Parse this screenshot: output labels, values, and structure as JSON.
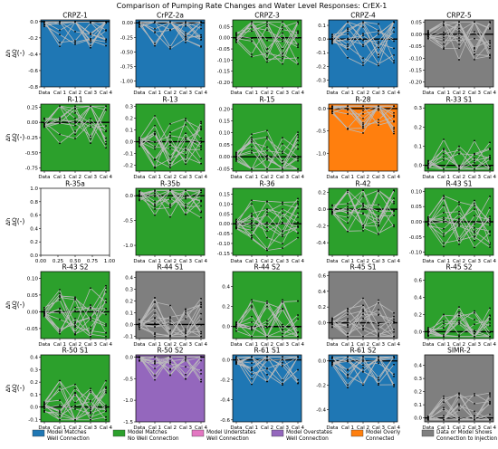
{
  "figure": {
    "title": "Comparison of Pumping Rate Changes and Water Level Responses: CrEX-1"
  },
  "colors": {
    "model_matches_well": "#1f77b4",
    "model_matches_no_well": "#2ca02c",
    "model_understates": "#e377c2",
    "model_overstates": "#9467bd",
    "model_overly_connected": "#ff7f0e",
    "data_or_model_injection": "#7f7f7f",
    "no_data": "#ffffff",
    "series_line": "#bbbbbb",
    "marker": "#000000",
    "zero_line": "#000000"
  },
  "legend": [
    {
      "key": "model_matches_well",
      "line1": "Model Matches",
      "line2": "Well Connection"
    },
    {
      "key": "model_matches_no_well",
      "line1": "Model Matches",
      "line2": "No Well Connection"
    },
    {
      "key": "model_understates",
      "line1": "Model Understates",
      "line2": "Well Connection"
    },
    {
      "key": "model_overstates",
      "line1": "Model Overstates",
      "line2": "Well Connection"
    },
    {
      "key": "model_overly_connected",
      "line1": "Model Overly",
      "line2": "Connected"
    },
    {
      "key": "data_or_model_injection",
      "line1": "Data or Model Shows",
      "line2": "Connection to Injection"
    }
  ],
  "chart_data": {
    "type": "line",
    "categories": [
      "Data",
      "Cal 1",
      "Cal 2",
      "Cal 3",
      "Cal 4"
    ],
    "ylabel_main": "Δh",
    "ylabel_sub": "ΔQ",
    "ylabel_unit": "(-)",
    "panels": [
      {
        "title": "CRPZ-1",
        "class": "model_matches_well",
        "ylim": [
          -0.8,
          0.02
        ],
        "yticks": [
          0.0,
          -0.2,
          -0.4,
          -0.6,
          -0.8
        ],
        "ytick_labels": [
          "0.0",
          "-0.2",
          "-0.4",
          "-0.6",
          "-0.8"
        ],
        "lines": 14
      },
      {
        "title": "CrPZ-2a",
        "class": "model_matches_well",
        "ylim": [
          -1.1,
          0.05
        ],
        "yticks": [
          0.0,
          -0.25,
          -0.5,
          -0.75,
          -1.0
        ],
        "ytick_labels": [
          "0.00",
          "-0.25",
          "-0.50",
          "-0.75",
          "-1.00"
        ],
        "lines": 14
      },
      {
        "title": "CRPZ-3",
        "class": "model_matches_no_well",
        "ylim": [
          -0.22,
          0.08
        ],
        "yticks": [
          0.05,
          0.0,
          -0.05,
          -0.1,
          -0.15,
          -0.2
        ],
        "ytick_labels": [
          "0.05",
          "0.00",
          "-0.05",
          "-0.10",
          "-0.15",
          "-0.20"
        ],
        "lines": 14
      },
      {
        "title": "CRPZ-4",
        "class": "model_matches_well",
        "ylim": [
          -0.35,
          0.14
        ],
        "yticks": [
          0.1,
          0.0,
          -0.1,
          -0.2,
          -0.3
        ],
        "ytick_labels": [
          "0.1",
          "0.0",
          "-0.1",
          "-0.2",
          "-0.3"
        ],
        "lines": 14
      },
      {
        "title": "CRPZ-5",
        "class": "data_or_model_injection",
        "ylim": [
          -0.22,
          0.06
        ],
        "yticks": [
          0.05,
          0.0,
          -0.05,
          -0.1,
          -0.15,
          -0.2
        ],
        "ytick_labels": [
          "0.05",
          "0.00",
          "-0.05",
          "-0.10",
          "-0.15",
          "-0.20"
        ],
        "lines": 14
      },
      {
        "title": "R-11",
        "class": "model_matches_no_well",
        "ylim": [
          -0.8,
          0.3
        ],
        "yticks": [
          0.25,
          0.0,
          -0.25,
          -0.5,
          -0.75
        ],
        "ytick_labels": [
          "0.25",
          "0.00",
          "-0.25",
          "-0.50",
          "-0.75"
        ],
        "lines": 12
      },
      {
        "title": "R-13",
        "class": "model_matches_no_well",
        "ylim": [
          -0.25,
          0.32
        ],
        "yticks": [
          0.3,
          0.2,
          0.1,
          0.0,
          -0.1,
          -0.2
        ],
        "ytick_labels": [
          "0.3",
          "0.2",
          "0.1",
          "0.0",
          "-0.1",
          "-0.2"
        ],
        "lines": 14
      },
      {
        "title": "R-15",
        "class": "model_matches_no_well",
        "ylim": [
          -0.06,
          0.22
        ],
        "yticks": [
          0.2,
          0.15,
          0.1,
          0.05,
          0.0,
          -0.05
        ],
        "ytick_labels": [
          "0.20",
          "0.15",
          "0.10",
          "0.05",
          "0.00",
          "-0.05"
        ],
        "lines": 14
      },
      {
        "title": "R-28",
        "class": "model_overly_connected",
        "ylim": [
          -1.4,
          0.1
        ],
        "yticks": [
          0.0,
          -0.5,
          -1.0
        ],
        "ytick_labels": [
          "0.0",
          "-0.5",
          "-1.0"
        ],
        "lines": 14
      },
      {
        "title": "R-33 S1",
        "class": "model_matches_no_well",
        "ylim": [
          -0.03,
          0.32
        ],
        "yticks": [
          0.3,
          0.2,
          0.1,
          0.0
        ],
        "ytick_labels": [
          "0.3",
          "0.2",
          "0.1",
          "0.0"
        ],
        "lines": 12
      },
      {
        "title": "R-35a",
        "class": "no_data",
        "ylim": [
          0.0,
          1.0
        ],
        "yticks": [
          1.0,
          0.8,
          0.6,
          0.4,
          0.2,
          0.0
        ],
        "ytick_labels": [
          "1.0",
          "0.8",
          "0.6",
          "0.4",
          "0.2",
          "0.0"
        ],
        "xticks": [
          0.0,
          0.25,
          0.5,
          0.75,
          1.0
        ],
        "xtick_labels": [
          "0.00",
          "0.25",
          "0.50",
          "0.75",
          "1.00"
        ],
        "lines": 0
      },
      {
        "title": "R-35b",
        "class": "model_matches_no_well",
        "ylim": [
          -1.2,
          0.15
        ],
        "yticks": [
          0.0,
          -0.5,
          -1.0
        ],
        "ytick_labels": [
          "0.0",
          "-0.5",
          "-1.0"
        ],
        "lines": 14
      },
      {
        "title": "R-36",
        "class": "model_matches_no_well",
        "ylim": [
          -0.16,
          0.18
        ],
        "yticks": [
          0.15,
          0.1,
          0.05,
          0.0,
          -0.05,
          -0.1,
          -0.15
        ],
        "ytick_labels": [
          "0.15",
          "0.10",
          "0.05",
          "0.00",
          "-0.05",
          "-0.10",
          "-0.15"
        ],
        "lines": 14
      },
      {
        "title": "R-42",
        "class": "model_matches_no_well",
        "ylim": [
          -0.55,
          0.25
        ],
        "yticks": [
          0.2,
          0.0,
          -0.2,
          -0.4
        ],
        "ytick_labels": [
          "0.2",
          "0.0",
          "-0.2",
          "-0.4"
        ],
        "lines": 14
      },
      {
        "title": "R-43 S1",
        "class": "model_matches_no_well",
        "ylim": [
          -0.11,
          0.11
        ],
        "yticks": [
          0.1,
          0.05,
          0.0,
          -0.05,
          -0.1
        ],
        "ytick_labels": [
          "0.10",
          "0.05",
          "0.00",
          "-0.05",
          "-0.10"
        ],
        "lines": 14
      },
      {
        "title": "R-43 S2",
        "class": "model_matches_no_well",
        "ylim": [
          -0.08,
          0.12
        ],
        "yticks": [
          0.1,
          0.05,
          0.0,
          -0.05
        ],
        "ytick_labels": [
          "0.10",
          "0.05",
          "0.00",
          "-0.05"
        ],
        "lines": 14
      },
      {
        "title": "R-44 S1",
        "class": "data_or_model_injection",
        "ylim": [
          -0.12,
          0.45
        ],
        "yticks": [
          0.4,
          0.3,
          0.2,
          0.1,
          0.0,
          -0.1
        ],
        "ytick_labels": [
          "0.4",
          "0.3",
          "0.2",
          "0.1",
          "0.0",
          "-0.1"
        ],
        "lines": 14
      },
      {
        "title": "R-44 S2",
        "class": "model_matches_no_well",
        "ylim": [
          -0.12,
          0.55
        ],
        "yticks": [
          0.4,
          0.2,
          0.0
        ],
        "ytick_labels": [
          "0.4",
          "0.2",
          "0.0"
        ],
        "lines": 14
      },
      {
        "title": "R-45 S1",
        "class": "data_or_model_injection",
        "ylim": [
          -0.2,
          0.65
        ],
        "yticks": [
          0.6,
          0.4,
          0.2,
          0.0
        ],
        "ytick_labels": [
          "0.6",
          "0.4",
          "0.2",
          "0.0"
        ],
        "lines": 14
      },
      {
        "title": "R-45 S2",
        "class": "model_matches_no_well",
        "ylim": [
          -0.08,
          0.7
        ],
        "yticks": [
          0.6,
          0.4,
          0.2,
          0.0
        ],
        "ytick_labels": [
          "0.6",
          "0.4",
          "0.2",
          "0.0"
        ],
        "lines": 14
      },
      {
        "title": "R-50 S1",
        "class": "model_matches_no_well",
        "ylim": [
          -0.12,
          0.42
        ],
        "yticks": [
          0.4,
          0.3,
          0.2,
          0.1,
          0.0,
          -0.1
        ],
        "ytick_labels": [
          "0.4",
          "0.3",
          "0.2",
          "0.1",
          "0.0",
          "-0.1"
        ],
        "lines": 14
      },
      {
        "title": "R-50 S2",
        "class": "model_overstates",
        "ylim": [
          -1.5,
          0.05
        ],
        "yticks": [
          0.0,
          -0.5,
          -1.0,
          -1.5
        ],
        "ytick_labels": [
          "0.0",
          "-0.5",
          "-1.0",
          "-1.5"
        ],
        "lines": 14
      },
      {
        "title": "R-61 S1",
        "class": "model_matches_well",
        "ylim": [
          -0.62,
          0.05
        ],
        "yticks": [
          0.0,
          -0.2,
          -0.4,
          -0.6
        ],
        "ytick_labels": [
          "0.0",
          "-0.2",
          "-0.4",
          "-0.6"
        ],
        "lines": 14
      },
      {
        "title": "R-61 S2",
        "class": "model_matches_well",
        "ylim": [
          -0.5,
          0.05
        ],
        "yticks": [
          0.0,
          -0.2,
          -0.4
        ],
        "ytick_labels": [
          "0.0",
          "-0.2",
          "-0.4"
        ],
        "lines": 14
      },
      {
        "title": "SIMR-2",
        "class": "data_or_model_injection",
        "ylim": [
          -0.03,
          0.48
        ],
        "yticks": [
          0.4,
          0.3,
          0.2,
          0.1,
          0.0
        ],
        "ytick_labels": [
          "0.4",
          "0.3",
          "0.2",
          "0.1",
          "0.0"
        ],
        "lines": 14
      }
    ]
  }
}
